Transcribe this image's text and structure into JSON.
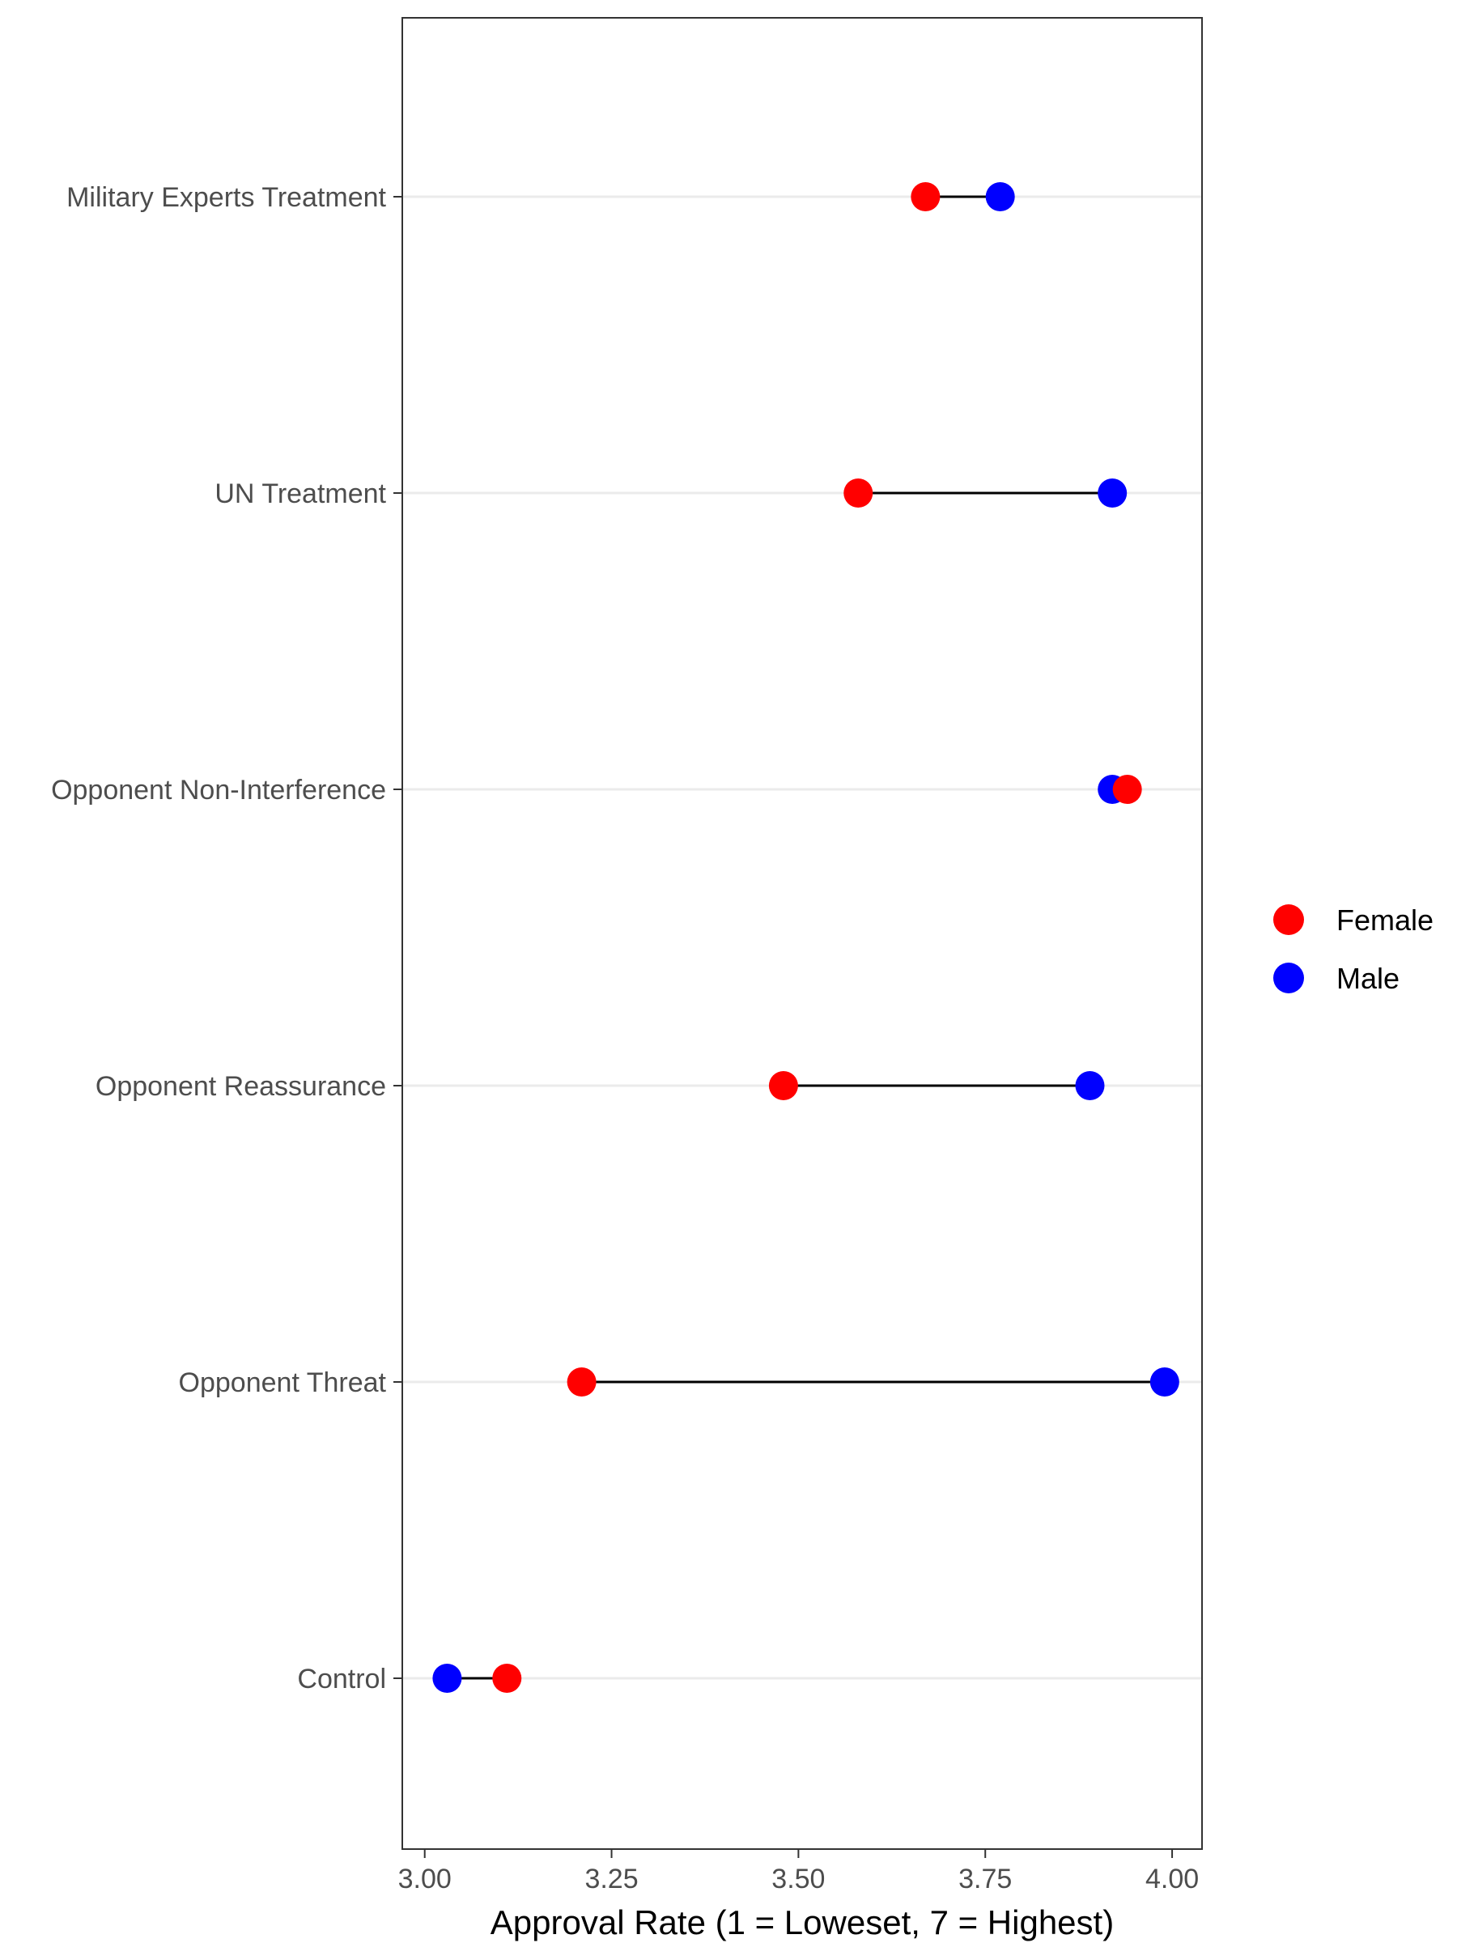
{
  "chart_data": {
    "type": "dumbbell",
    "title": "",
    "xlabel": "Approval Rate (1 = Loweset, 7 = Highest)",
    "ylabel": "",
    "xlim": [
      2.97,
      4.04
    ],
    "xticks": [
      3.0,
      3.25,
      3.5,
      3.75,
      4.0
    ],
    "xtick_labels": [
      "3.00",
      "3.25",
      "3.50",
      "3.75",
      "4.00"
    ],
    "grid": "horizontal major lines only",
    "legend_position": "right",
    "categories": [
      "Military Experts Treatment",
      "UN Treatment",
      "Opponent Non-Interference",
      "Opponent Reassurance",
      "Opponent Threat",
      "Control"
    ],
    "series": [
      {
        "name": "Female",
        "color": "#ff0000",
        "values": [
          3.67,
          3.58,
          3.94,
          3.48,
          3.21,
          3.11
        ]
      },
      {
        "name": "Male",
        "color": "#0000ff",
        "values": [
          3.77,
          3.92,
          3.92,
          3.89,
          3.99,
          3.03
        ]
      }
    ],
    "arrow": {
      "from": "Male",
      "to": "Female",
      "color": "#000000"
    }
  }
}
